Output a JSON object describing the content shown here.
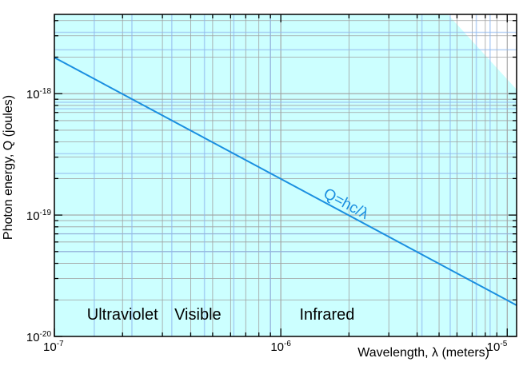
{
  "chart_data": {
    "type": "line",
    "title": "",
    "xlabel": "Wavelength, λ (meters)",
    "ylabel": "Photon energy, Q (joules)",
    "xscale": "log",
    "yscale": "log",
    "xlim": [
      1e-07,
      1.1e-05
    ],
    "ylim": [
      1e-20,
      4.5e-18
    ],
    "grid": true,
    "x_ticks": [
      {
        "value": 1e-07,
        "base": "10",
        "exp": "-7"
      },
      {
        "value": 1e-06,
        "base": "10",
        "exp": "-6"
      },
      {
        "value": 1e-05,
        "base": "10",
        "exp": "-5"
      }
    ],
    "y_ticks": [
      {
        "value": 1e-20,
        "base": "10",
        "exp": "-20"
      },
      {
        "value": 1e-19,
        "base": "10",
        "exp": "-19"
      },
      {
        "value": 1e-18,
        "base": "10",
        "exp": "-18"
      }
    ],
    "series": [
      {
        "name": "",
        "label": "Q=hc/λ",
        "color": "#1a8fe0",
        "x": [
          1e-07,
          1.1e-05
        ],
        "y": [
          1.986e-18,
          1.806e-20
        ]
      }
    ],
    "annotations": [
      {
        "text": "Ultraviolet",
        "x": 2e-07,
        "y": 1.38e-20
      },
      {
        "text": "Visible",
        "x": 4.3e-07,
        "y": 1.38e-20
      },
      {
        "text": "Infrared",
        "x": 1.6e-06,
        "y": 1.38e-20
      }
    ],
    "colors": {
      "background": "#ccffff",
      "grid": "#a0a0a0",
      "band": "#8fb8f0",
      "line": "#1a8fe0"
    }
  }
}
